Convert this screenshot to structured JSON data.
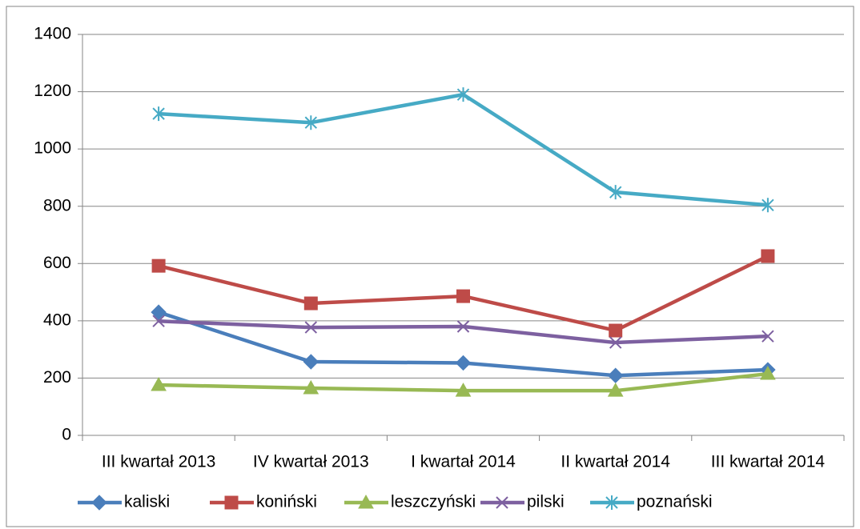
{
  "chart_data": {
    "type": "line",
    "categories": [
      "III kwartał 2013",
      "IV kwartał 2013",
      "I kwartał 2014",
      "II kwartał 2014",
      "III kwartał 2014"
    ],
    "series": [
      {
        "name": "kaliski",
        "color": "#4a7ebb",
        "marker": "diamond",
        "values": [
          430,
          257,
          253,
          209,
          229
        ]
      },
      {
        "name": "koniński",
        "color": "#be4b48",
        "marker": "square",
        "values": [
          592,
          461,
          486,
          366,
          626
        ]
      },
      {
        "name": "leszczyński",
        "color": "#98b954",
        "marker": "triangle",
        "values": [
          176,
          165,
          156,
          156,
          215
        ]
      },
      {
        "name": "pilski",
        "color": "#7d60a0",
        "marker": "x",
        "values": [
          399,
          377,
          380,
          324,
          346
        ]
      },
      {
        "name": "poznański",
        "color": "#46aac5",
        "marker": "asterisk",
        "values": [
          1123,
          1092,
          1190,
          849,
          804
        ]
      }
    ],
    "ylim": [
      0,
      1400
    ],
    "yticks": [
      0,
      200,
      400,
      600,
      800,
      1000,
      1200,
      1400
    ],
    "grid": true,
    "legend": "bottom"
  }
}
